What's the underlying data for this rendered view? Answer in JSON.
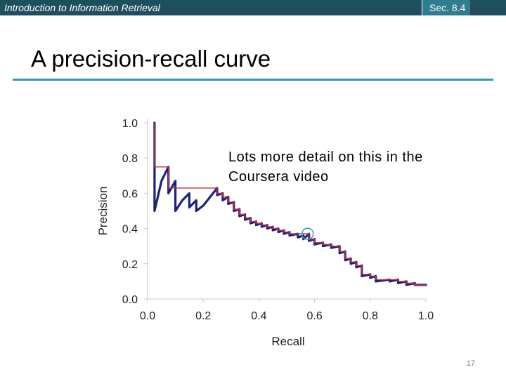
{
  "header": {
    "course_title": "Introduction to Information Retrieval",
    "section": "Sec. 8.4"
  },
  "slide": {
    "title": "A precision-recall curve",
    "callout_line1": "Lots more detail on this in the",
    "callout_line2": "Coursera video",
    "page_number": "17"
  },
  "colors": {
    "header_bar": "#1f4e5f",
    "section_box": "#2f7d8e",
    "title_rule": "#2f9ab0",
    "precision_curve": "#1a237e",
    "interpolated_curve": "#d03030",
    "highlight_circle": "#3aa0a8"
  },
  "chart_data": {
    "type": "line",
    "title": "",
    "xlabel": "Recall",
    "ylabel": "Precision",
    "xlim": [
      0,
      1
    ],
    "ylim": [
      0,
      1
    ],
    "x_ticks": [
      "0.0",
      "0.2",
      "0.4",
      "0.6",
      "0.8",
      "1.0"
    ],
    "y_ticks": [
      "0.0",
      "0.2",
      "0.4",
      "0.6",
      "0.8",
      "1.0"
    ],
    "grid": false,
    "legend": "none",
    "highlight": {
      "x": 0.575,
      "y": 0.37,
      "shape": "circle"
    },
    "series": [
      {
        "role": "precision",
        "points": [
          [
            0.025,
            1.0
          ],
          [
            0.025,
            0.5
          ],
          [
            0.05,
            0.67
          ],
          [
            0.075,
            0.75
          ],
          [
            0.075,
            0.6
          ],
          [
            0.1,
            0.67
          ],
          [
            0.1,
            0.5
          ],
          [
            0.125,
            0.56
          ],
          [
            0.15,
            0.6
          ],
          [
            0.15,
            0.52
          ],
          [
            0.175,
            0.56
          ],
          [
            0.175,
            0.5
          ],
          [
            0.2,
            0.53
          ],
          [
            0.25,
            0.63
          ],
          [
            0.25,
            0.59
          ],
          [
            0.27,
            0.6
          ],
          [
            0.27,
            0.56
          ],
          [
            0.29,
            0.58
          ],
          [
            0.29,
            0.54
          ],
          [
            0.31,
            0.55
          ],
          [
            0.31,
            0.5
          ],
          [
            0.33,
            0.51
          ],
          [
            0.33,
            0.47
          ],
          [
            0.35,
            0.48
          ],
          [
            0.35,
            0.45
          ],
          [
            0.37,
            0.46
          ],
          [
            0.37,
            0.43
          ],
          [
            0.39,
            0.44
          ],
          [
            0.39,
            0.42
          ],
          [
            0.41,
            0.43
          ],
          [
            0.41,
            0.41
          ],
          [
            0.43,
            0.42
          ],
          [
            0.43,
            0.4
          ],
          [
            0.45,
            0.41
          ],
          [
            0.45,
            0.39
          ],
          [
            0.47,
            0.4
          ],
          [
            0.47,
            0.38
          ],
          [
            0.49,
            0.39
          ],
          [
            0.49,
            0.37
          ],
          [
            0.51,
            0.38
          ],
          [
            0.51,
            0.36
          ],
          [
            0.54,
            0.37
          ],
          [
            0.54,
            0.35
          ],
          [
            0.56,
            0.36
          ],
          [
            0.56,
            0.34
          ],
          [
            0.58,
            0.37
          ],
          [
            0.58,
            0.33
          ],
          [
            0.6,
            0.34
          ],
          [
            0.6,
            0.31
          ],
          [
            0.63,
            0.32
          ],
          [
            0.63,
            0.3
          ],
          [
            0.66,
            0.31
          ],
          [
            0.66,
            0.29
          ],
          [
            0.69,
            0.3
          ],
          [
            0.69,
            0.26
          ],
          [
            0.71,
            0.27
          ],
          [
            0.71,
            0.22
          ],
          [
            0.73,
            0.23
          ],
          [
            0.73,
            0.2
          ],
          [
            0.75,
            0.21
          ],
          [
            0.75,
            0.18
          ],
          [
            0.77,
            0.19
          ],
          [
            0.77,
            0.13
          ],
          [
            0.8,
            0.14
          ],
          [
            0.8,
            0.12
          ],
          [
            0.82,
            0.13
          ],
          [
            0.82,
            0.1
          ],
          [
            0.87,
            0.11
          ],
          [
            0.87,
            0.1
          ],
          [
            0.9,
            0.11
          ],
          [
            0.9,
            0.09
          ],
          [
            0.93,
            0.1
          ],
          [
            0.93,
            0.08
          ],
          [
            0.96,
            0.09
          ],
          [
            0.96,
            0.08
          ],
          [
            1.0,
            0.08
          ]
        ]
      },
      {
        "role": "interpolated",
        "points": [
          [
            0.025,
            1.0
          ],
          [
            0.025,
            0.75
          ],
          [
            0.075,
            0.75
          ],
          [
            0.075,
            0.63
          ],
          [
            0.25,
            0.63
          ],
          [
            0.25,
            0.6
          ],
          [
            0.27,
            0.6
          ],
          [
            0.27,
            0.58
          ],
          [
            0.29,
            0.58
          ],
          [
            0.29,
            0.55
          ],
          [
            0.31,
            0.55
          ],
          [
            0.31,
            0.51
          ],
          [
            0.33,
            0.51
          ],
          [
            0.33,
            0.48
          ],
          [
            0.35,
            0.48
          ],
          [
            0.35,
            0.46
          ],
          [
            0.37,
            0.46
          ],
          [
            0.37,
            0.44
          ],
          [
            0.39,
            0.44
          ],
          [
            0.39,
            0.43
          ],
          [
            0.41,
            0.43
          ],
          [
            0.41,
            0.42
          ],
          [
            0.43,
            0.42
          ],
          [
            0.43,
            0.41
          ],
          [
            0.45,
            0.41
          ],
          [
            0.45,
            0.4
          ],
          [
            0.47,
            0.4
          ],
          [
            0.47,
            0.39
          ],
          [
            0.49,
            0.39
          ],
          [
            0.49,
            0.38
          ],
          [
            0.51,
            0.38
          ],
          [
            0.51,
            0.37
          ],
          [
            0.58,
            0.37
          ],
          [
            0.58,
            0.34
          ],
          [
            0.6,
            0.34
          ],
          [
            0.6,
            0.32
          ],
          [
            0.63,
            0.32
          ],
          [
            0.63,
            0.31
          ],
          [
            0.66,
            0.31
          ],
          [
            0.66,
            0.3
          ],
          [
            0.69,
            0.3
          ],
          [
            0.69,
            0.27
          ],
          [
            0.71,
            0.27
          ],
          [
            0.71,
            0.23
          ],
          [
            0.73,
            0.23
          ],
          [
            0.73,
            0.21
          ],
          [
            0.75,
            0.21
          ],
          [
            0.75,
            0.19
          ],
          [
            0.77,
            0.19
          ],
          [
            0.77,
            0.14
          ],
          [
            0.8,
            0.14
          ],
          [
            0.8,
            0.13
          ],
          [
            0.82,
            0.13
          ],
          [
            0.82,
            0.11
          ],
          [
            0.9,
            0.11
          ],
          [
            0.9,
            0.1
          ],
          [
            0.93,
            0.1
          ],
          [
            0.93,
            0.09
          ],
          [
            0.96,
            0.09
          ],
          [
            0.96,
            0.08
          ],
          [
            1.0,
            0.08
          ]
        ]
      }
    ]
  }
}
